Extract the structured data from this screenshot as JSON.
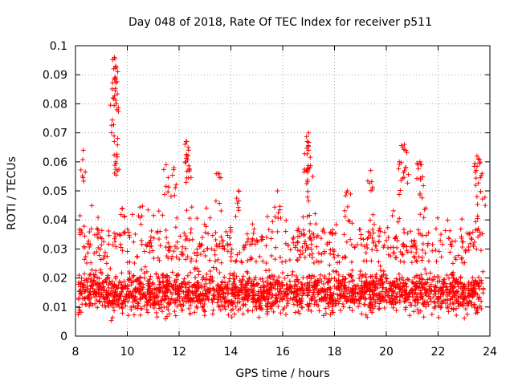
{
  "chart_data": {
    "type": "scatter",
    "title": "Day 048 of 2018, Rate Of TEC Index for receiver p511",
    "xlabel": "GPS time / hours",
    "ylabel": "ROTI / TECUs",
    "xlim": [
      8,
      24
    ],
    "ylim": [
      0,
      0.1
    ],
    "xticks": [
      8,
      10,
      12,
      14,
      16,
      18,
      20,
      22,
      24
    ],
    "yticks": [
      0,
      0.01,
      0.02,
      0.03,
      0.04,
      0.05,
      0.06,
      0.07,
      0.08,
      0.09,
      0.1
    ],
    "xtick_labels": [
      "8",
      "10",
      "12",
      "14",
      "16",
      "18",
      "20",
      "22",
      "24"
    ],
    "ytick_labels": [
      "0",
      "0.01",
      "0.02",
      "0.03",
      "0.04",
      "0.05",
      "0.06",
      "0.07",
      "0.08",
      "0.09",
      "0.1"
    ],
    "grid": true,
    "marker": "+",
    "series_color": "#ff0000",
    "x_data_range": [
      8.1,
      23.75
    ],
    "typical_band": [
      0.005,
      0.025
    ],
    "notable_points": [
      {
        "x": 8.3,
        "y": 0.064
      },
      {
        "x": 9.5,
        "y": 0.096
      },
      {
        "x": 9.52,
        "y": 0.0955
      },
      {
        "x": 9.55,
        "y": 0.093
      },
      {
        "x": 9.45,
        "y": 0.082
      },
      {
        "x": 9.58,
        "y": 0.08
      },
      {
        "x": 9.5,
        "y": 0.067
      },
      {
        "x": 9.55,
        "y": 0.06
      },
      {
        "x": 9.8,
        "y": 0.044
      },
      {
        "x": 12.3,
        "y": 0.067
      },
      {
        "x": 12.35,
        "y": 0.065
      },
      {
        "x": 12.3,
        "y": 0.062
      },
      {
        "x": 11.8,
        "y": 0.058
      },
      {
        "x": 11.5,
        "y": 0.059
      },
      {
        "x": 13.5,
        "y": 0.056
      },
      {
        "x": 14.3,
        "y": 0.05
      },
      {
        "x": 15.8,
        "y": 0.05
      },
      {
        "x": 17.0,
        "y": 0.07
      },
      {
        "x": 16.95,
        "y": 0.067
      },
      {
        "x": 17.0,
        "y": 0.064
      },
      {
        "x": 17.05,
        "y": 0.058
      },
      {
        "x": 18.5,
        "y": 0.05
      },
      {
        "x": 19.4,
        "y": 0.057
      },
      {
        "x": 20.5,
        "y": 0.06
      },
      {
        "x": 20.7,
        "y": 0.066
      },
      {
        "x": 20.75,
        "y": 0.064
      },
      {
        "x": 21.3,
        "y": 0.06
      },
      {
        "x": 21.35,
        "y": 0.059
      },
      {
        "x": 23.5,
        "y": 0.062
      },
      {
        "x": 23.55,
        "y": 0.061
      },
      {
        "x": 23.7,
        "y": 0.056
      },
      {
        "x": 23.5,
        "y": 0.048
      }
    ]
  }
}
